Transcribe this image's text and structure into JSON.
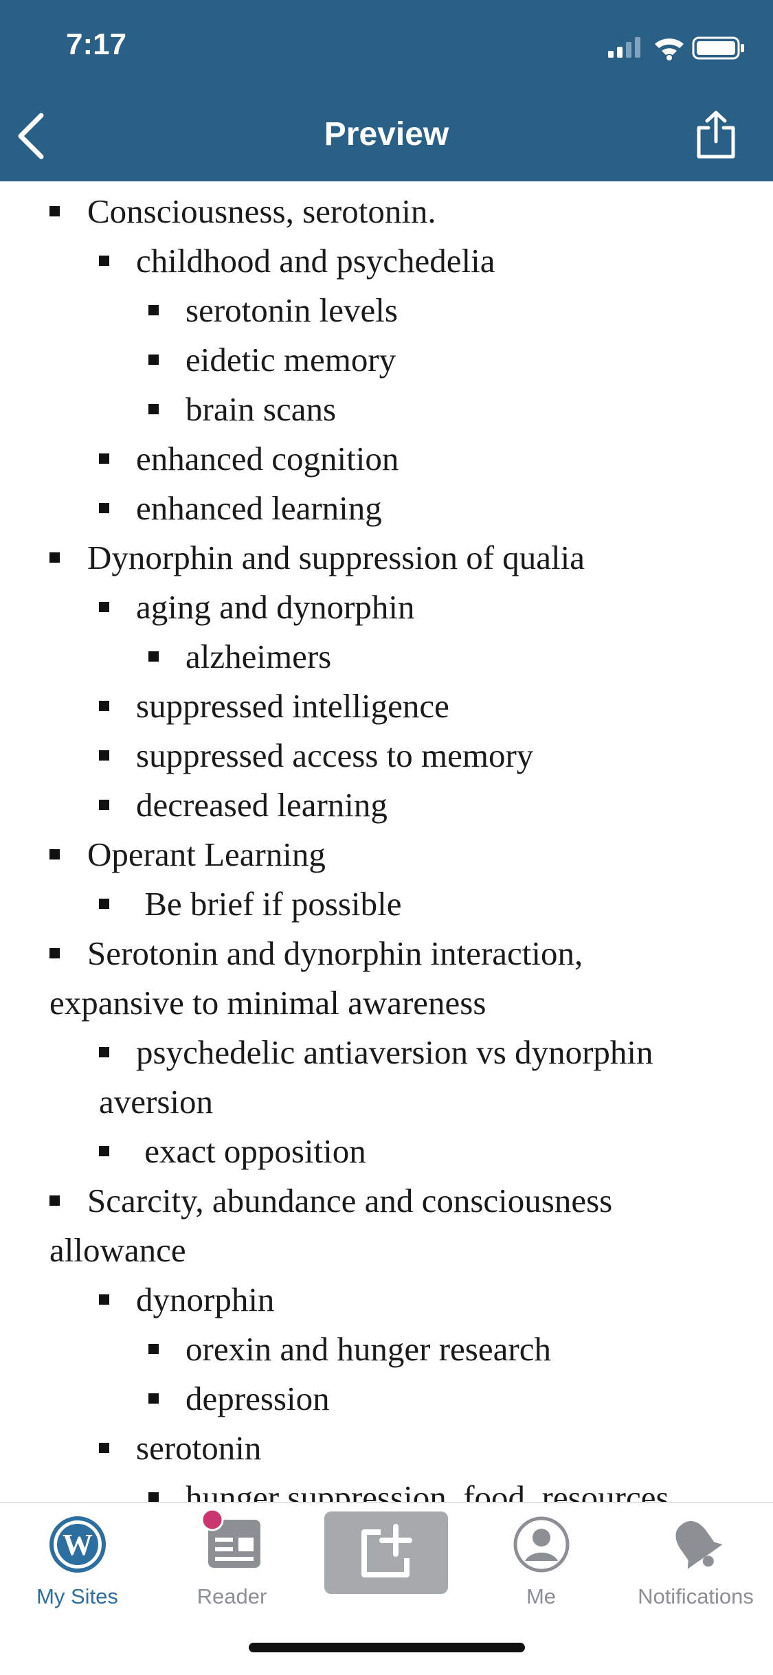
{
  "status_bar": {
    "time": "7:17"
  },
  "nav": {
    "title": "Preview",
    "back_icon": "chevron-left-icon",
    "share_icon": "share-icon"
  },
  "content": {
    "lines": [
      {
        "text": "Consciousness, serotonin.",
        "level": 0,
        "bullet": true
      },
      {
        "text": "childhood and psychedelia",
        "level": 1,
        "bullet": true
      },
      {
        "text": "serotonin levels",
        "level": 2,
        "bullet": true
      },
      {
        "text": "eidetic memory",
        "level": 2,
        "bullet": true
      },
      {
        "text": "brain scans",
        "level": 2,
        "bullet": true
      },
      {
        "text": "enhanced cognition",
        "level": 1,
        "bullet": true
      },
      {
        "text": "enhanced learning",
        "level": 1,
        "bullet": true
      },
      {
        "text": "Dynorphin and suppression of qualia",
        "level": 0,
        "bullet": true
      },
      {
        "text": "aging and dynorphin",
        "level": 1,
        "bullet": true
      },
      {
        "text": "alzheimers",
        "level": 2,
        "bullet": true
      },
      {
        "text": "suppressed intelligence",
        "level": 1,
        "bullet": true
      },
      {
        "text": "suppressed access to memory",
        "level": 1,
        "bullet": true
      },
      {
        "text": "decreased learning",
        "level": 1,
        "bullet": true
      },
      {
        "text": "Operant Learning",
        "level": 0,
        "bullet": true
      },
      {
        "text": " Be brief if possible",
        "level": 1,
        "bullet": true
      },
      {
        "text": "Serotonin and dynorphin interaction,",
        "level": 0,
        "bullet": true
      },
      {
        "text": "expansive to minimal awareness",
        "level": 0,
        "bullet": false
      },
      {
        "text": "psychedelic antiaversion vs dynorphin",
        "level": 1,
        "bullet": true
      },
      {
        "text": "aversion",
        "level": 1,
        "bullet": false
      },
      {
        "text": " exact opposition",
        "level": 1,
        "bullet": true
      },
      {
        "text": "Scarcity, abundance and consciousness",
        "level": 0,
        "bullet": true
      },
      {
        "text": "allowance",
        "level": 0,
        "bullet": false
      },
      {
        "text": "dynorphin",
        "level": 1,
        "bullet": true
      },
      {
        "text": "orexin and hunger research",
        "level": 2,
        "bullet": true
      },
      {
        "text": "depression",
        "level": 2,
        "bullet": true
      },
      {
        "text": "serotonin",
        "level": 1,
        "bullet": true
      },
      {
        "text": "hunger suppression, food, resources",
        "level": 2,
        "bullet": true
      }
    ]
  },
  "tabbar": {
    "tabs": [
      {
        "label": "My Sites",
        "icon": "wordpress-icon",
        "active": true
      },
      {
        "label": "Reader",
        "icon": "reader-icon",
        "badge": true
      },
      {
        "label": "",
        "icon": "new-post-icon"
      },
      {
        "label": "Me",
        "icon": "person-icon"
      },
      {
        "label": "Notifications",
        "icon": "bell-icon"
      }
    ]
  },
  "colors": {
    "nav_bg": "#2b6086",
    "active_tab": "#2c6ea0",
    "inactive_tab": "#8c8f94",
    "badge": "#c9356e"
  }
}
